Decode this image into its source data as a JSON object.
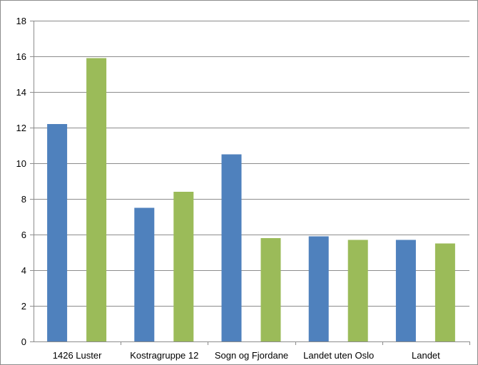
{
  "chart_data": {
    "type": "bar",
    "categories": [
      "1426 Luster",
      "Kostragruppe 12",
      "Sogn og Fjordane",
      "Landet uten Oslo",
      "Landet"
    ],
    "series": [
      {
        "values": [
          12.2,
          7.5,
          10.5,
          5.9,
          5.7
        ],
        "color": "#4f81bd"
      },
      {
        "values": [
          15.9,
          8.4,
          5.8,
          5.7,
          5.5
        ],
        "color": "#9bbb59"
      }
    ],
    "y_ticks": [
      "0",
      "2",
      "4",
      "6",
      "8",
      "10",
      "12",
      "14",
      "16",
      "18"
    ],
    "ylim": [
      0,
      18
    ],
    "grid": true,
    "legend": "none"
  }
}
